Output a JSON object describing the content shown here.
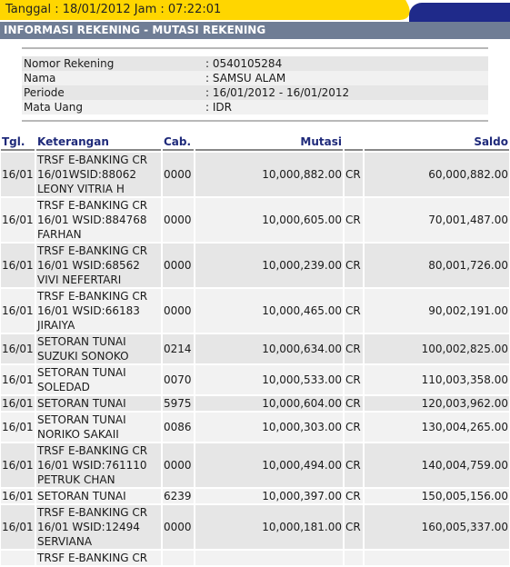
{
  "header": {
    "date_label": "Tanggal : 18/01/2012 Jam : 07:22:01",
    "section_title": "INFORMASI REKENING - MUTASI REKENING"
  },
  "account": {
    "rows": [
      {
        "label": "Nomor Rekening",
        "value": ": 0540105284"
      },
      {
        "label": "Nama",
        "value": ": SAMSU ALAM"
      },
      {
        "label": "Periode",
        "value": ": 16/01/2012 - 16/01/2012"
      },
      {
        "label": "Mata Uang",
        "value": ": IDR"
      }
    ]
  },
  "table": {
    "columns": {
      "tgl": "Tgl.",
      "keterangan": "Keterangan",
      "cab": "Cab.",
      "mutasi": "Mutasi",
      "saldo": "Saldo"
    },
    "rows": [
      {
        "tgl": "16/01",
        "ket": [
          "TRSF E-BANKING CR",
          "16/01WSID:88062",
          "LEONY VITRIA H"
        ],
        "cab": "0000",
        "mutasi": "10,000,882.00",
        "dc": "CR",
        "saldo": "60,000,882.00"
      },
      {
        "tgl": "16/01",
        "ket": [
          "TRSF E-BANKING CR",
          "16/01 WSID:884768",
          "FARHAN"
        ],
        "cab": "0000",
        "mutasi": "10,000,605.00",
        "dc": "CR",
        "saldo": "70,001,487.00"
      },
      {
        "tgl": "16/01",
        "ket": [
          "TRSF E-BANKING CR",
          "16/01 WSID:68562",
          "VIVI NEFERTARI"
        ],
        "cab": "0000",
        "mutasi": "10,000,239.00",
        "dc": "CR",
        "saldo": "80,001,726.00"
      },
      {
        "tgl": "16/01",
        "ket": [
          "TRSF E-BANKING CR",
          "16/01 WSID:66183",
          "JIRAIYA"
        ],
        "cab": "0000",
        "mutasi": "10,000,465.00",
        "dc": "CR",
        "saldo": "90,002,191.00"
      },
      {
        "tgl": "16/01",
        "ket": [
          "SETORAN TUNAI",
          "SUZUKI SONOKO"
        ],
        "cab": "0214",
        "mutasi": "10,000,634.00",
        "dc": "CR",
        "saldo": "100,002,825.00"
      },
      {
        "tgl": "16/01",
        "ket": [
          "SETORAN TUNAI",
          "SOLEDAD"
        ],
        "cab": "0070",
        "mutasi": "10,000,533.00",
        "dc": "CR",
        "saldo": "110,003,358.00"
      },
      {
        "tgl": "16/01",
        "ket": [
          "SETORAN TUNAI"
        ],
        "cab": "5975",
        "mutasi": "10,000,604.00",
        "dc": "CR",
        "saldo": "120,003,962.00"
      },
      {
        "tgl": "16/01",
        "ket": [
          "SETORAN TUNAI",
          "NORIKO SAKAII"
        ],
        "cab": "0086",
        "mutasi": "10,000,303.00",
        "dc": "CR",
        "saldo": "130,004,265.00"
      },
      {
        "tgl": "16/01",
        "ket": [
          "TRSF E-BANKING CR",
          "16/01 WSID:761110",
          "PETRUK CHAN"
        ],
        "cab": "0000",
        "mutasi": "10,000,494.00",
        "dc": "CR",
        "saldo": "140,004,759.00"
      },
      {
        "tgl": "16/01",
        "ket": [
          "SETORAN TUNAI"
        ],
        "cab": "6239",
        "mutasi": "10,000,397.00",
        "dc": "CR",
        "saldo": "150,005,156.00"
      },
      {
        "tgl": "16/01",
        "ket": [
          "TRSF E-BANKING CR",
          "16/01 WSID:12494",
          "SERVIANA"
        ],
        "cab": "0000",
        "mutasi": "10,000,181.00",
        "dc": "CR",
        "saldo": "160,005,337.00"
      },
      {
        "tgl": "",
        "ket": [
          "TRSF E-BANKING CR"
        ],
        "cab": "",
        "mutasi": "",
        "dc": "",
        "saldo": ""
      }
    ]
  }
}
